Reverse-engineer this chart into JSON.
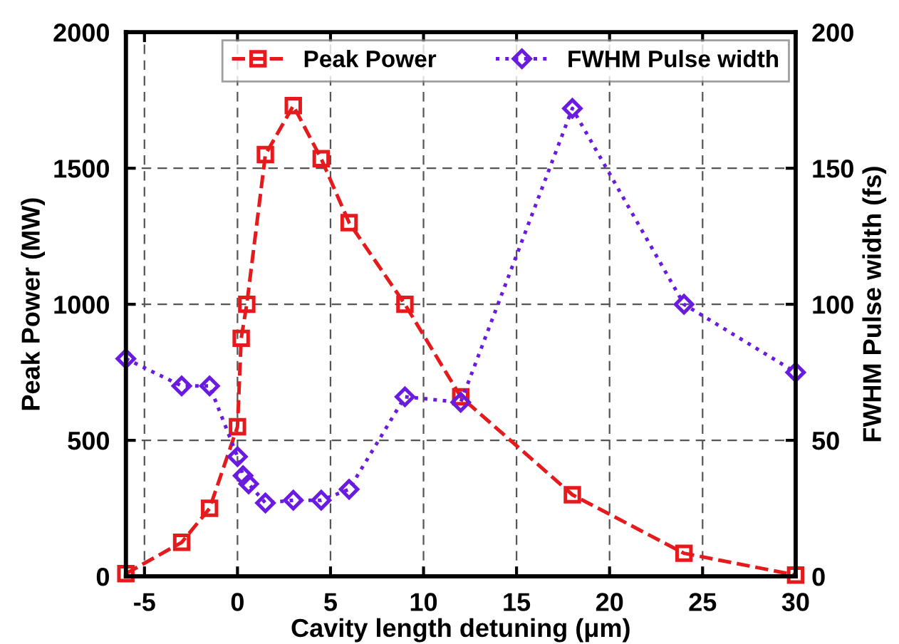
{
  "chart_data": {
    "type": "line",
    "xlabel": "Cavity length detuning (μm)",
    "ylabel": "Peak Power (MW)",
    "y2label": "FWHM Pulse width (fs)",
    "xlim": [
      -6,
      30
    ],
    "xticks": [
      -5,
      0,
      5,
      10,
      15,
      20,
      25,
      30
    ],
    "ylim": [
      0,
      2000
    ],
    "yticks": [
      0,
      500,
      1000,
      1500,
      2000
    ],
    "y2lim": [
      0,
      200
    ],
    "y2ticks": [
      0,
      50,
      100,
      150,
      200
    ],
    "grid": true,
    "legend": "top",
    "series": [
      {
        "name": "Peak Power",
        "color": "#e41a1c",
        "marker": "square",
        "line_style": "dashed",
        "x": [
          -6,
          -3,
          -1.5,
          0,
          0.2,
          0.5,
          1.5,
          3,
          4.5,
          6,
          9,
          12,
          18,
          24,
          30
        ],
        "values": [
          10,
          125,
          250,
          550,
          875,
          1000,
          1550,
          1730,
          1535,
          1300,
          1000,
          660,
          300,
          85,
          5
        ]
      },
      {
        "name": "FWHM Pulse width",
        "color": "#6a1be0",
        "marker": "diamond",
        "line_style": "dotted",
        "axis": "y2",
        "x": [
          -6,
          -3,
          -1.5,
          0,
          0.3,
          0.6,
          1.5,
          3,
          4.5,
          6,
          9,
          12,
          18,
          24,
          30
        ],
        "values": [
          80,
          70,
          70,
          44,
          37,
          34,
          27,
          28,
          28,
          32,
          66,
          64,
          172,
          100,
          75
        ]
      }
    ]
  }
}
